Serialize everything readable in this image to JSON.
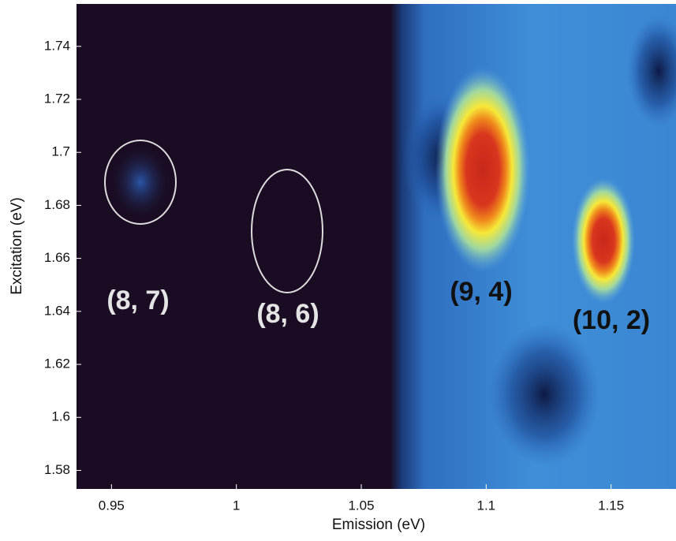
{
  "chart_data": {
    "type": "heatmap",
    "xlabel": "Emission (eV)",
    "ylabel": "Excitation (eV)",
    "xlim": [
      0.936,
      1.176
    ],
    "ylim": [
      1.573,
      1.756
    ],
    "xticks": [
      0.95,
      1,
      1.05,
      1.1,
      1.15
    ],
    "yticks": [
      1.58,
      1.6,
      1.62,
      1.64,
      1.66,
      1.68,
      1.7,
      1.72,
      1.74
    ],
    "annotations": [
      "(8, 7)",
      "(8, 6)",
      "(9, 4)",
      "(10, 2)"
    ]
  }
}
